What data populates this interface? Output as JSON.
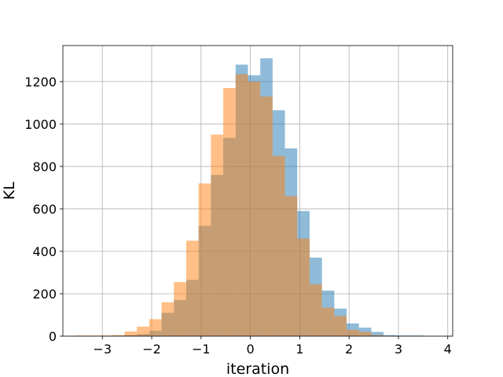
{
  "chart_data": {
    "type": "histogram",
    "xlabel": "iteration",
    "ylabel": "KL",
    "xlim": [
      -3.8,
      4.1
    ],
    "ylim": [
      0,
      1370
    ],
    "xticks": [
      -3,
      -2,
      -1,
      0,
      1,
      2,
      3,
      4
    ],
    "xtick_labels": [
      "−3",
      "−2",
      "−1",
      "0",
      "1",
      "2",
      "3",
      "4"
    ],
    "yticks": [
      0,
      200,
      400,
      600,
      800,
      1000,
      1200
    ],
    "ytick_labels": [
      "0",
      "200",
      "400",
      "600",
      "800",
      "1000",
      "1200"
    ],
    "grid": true,
    "series": [
      {
        "color": "#1f77b4",
        "alpha": 0.5,
        "bins": [
          {
            "x0": -3.05,
            "x1": -2.8,
            "value": 2
          },
          {
            "x0": -2.8,
            "x1": -2.55,
            "value": 3
          },
          {
            "x0": -2.55,
            "x1": -2.3,
            "value": 5
          },
          {
            "x0": -2.3,
            "x1": -2.05,
            "value": 10
          },
          {
            "x0": -2.05,
            "x1": -1.8,
            "value": 25
          },
          {
            "x0": -1.8,
            "x1": -1.55,
            "value": 110
          },
          {
            "x0": -1.55,
            "x1": -1.3,
            "value": 170
          },
          {
            "x0": -1.3,
            "x1": -1.05,
            "value": 265
          },
          {
            "x0": -1.05,
            "x1": -0.8,
            "value": 520
          },
          {
            "x0": -0.8,
            "x1": -0.55,
            "value": 760
          },
          {
            "x0": -0.55,
            "x1": -0.3,
            "value": 935
          },
          {
            "x0": -0.3,
            "x1": -0.05,
            "value": 1280
          },
          {
            "x0": -0.05,
            "x1": 0.2,
            "value": 1230
          },
          {
            "x0": 0.2,
            "x1": 0.45,
            "value": 1310
          },
          {
            "x0": 0.45,
            "x1": 0.7,
            "value": 1065
          },
          {
            "x0": 0.7,
            "x1": 0.95,
            "value": 885
          },
          {
            "x0": 0.95,
            "x1": 1.2,
            "value": 590
          },
          {
            "x0": 1.2,
            "x1": 1.45,
            "value": 370
          },
          {
            "x0": 1.45,
            "x1": 1.7,
            "value": 215
          },
          {
            "x0": 1.7,
            "x1": 1.95,
            "value": 130
          },
          {
            "x0": 1.95,
            "x1": 2.2,
            "value": 60
          },
          {
            "x0": 2.2,
            "x1": 2.45,
            "value": 40
          },
          {
            "x0": 2.45,
            "x1": 2.7,
            "value": 20
          },
          {
            "x0": 2.7,
            "x1": 2.95,
            "value": 5
          },
          {
            "x0": 2.95,
            "x1": 3.2,
            "value": 3
          },
          {
            "x0": 3.2,
            "x1": 3.5,
            "value": 3
          }
        ]
      },
      {
        "color": "#ff7f0e",
        "alpha": 0.5,
        "bins": [
          {
            "x0": -3.55,
            "x1": -3.3,
            "value": 3
          },
          {
            "x0": -3.3,
            "x1": -3.05,
            "value": 3
          },
          {
            "x0": -3.05,
            "x1": -2.8,
            "value": 3
          },
          {
            "x0": -2.8,
            "x1": -2.55,
            "value": 5
          },
          {
            "x0": -2.55,
            "x1": -2.3,
            "value": 22
          },
          {
            "x0": -2.3,
            "x1": -2.05,
            "value": 45
          },
          {
            "x0": -2.05,
            "x1": -1.8,
            "value": 80
          },
          {
            "x0": -1.8,
            "x1": -1.55,
            "value": 160
          },
          {
            "x0": -1.55,
            "x1": -1.3,
            "value": 255
          },
          {
            "x0": -1.3,
            "x1": -1.05,
            "value": 450
          },
          {
            "x0": -1.05,
            "x1": -0.8,
            "value": 720
          },
          {
            "x0": -0.8,
            "x1": -0.55,
            "value": 950
          },
          {
            "x0": -0.55,
            "x1": -0.3,
            "value": 1170
          },
          {
            "x0": -0.3,
            "x1": -0.05,
            "value": 1235
          },
          {
            "x0": -0.05,
            "x1": 0.2,
            "value": 1200
          },
          {
            "x0": 0.2,
            "x1": 0.45,
            "value": 1130
          },
          {
            "x0": 0.45,
            "x1": 0.7,
            "value": 850
          },
          {
            "x0": 0.7,
            "x1": 0.95,
            "value": 660
          },
          {
            "x0": 0.95,
            "x1": 1.2,
            "value": 460
          },
          {
            "x0": 1.2,
            "x1": 1.45,
            "value": 245
          },
          {
            "x0": 1.45,
            "x1": 1.7,
            "value": 135
          },
          {
            "x0": 1.7,
            "x1": 1.95,
            "value": 95
          },
          {
            "x0": 1.95,
            "x1": 2.2,
            "value": 30
          },
          {
            "x0": 2.2,
            "x1": 2.45,
            "value": 20
          },
          {
            "x0": 2.45,
            "x1": 2.7,
            "value": 5
          }
        ]
      }
    ]
  }
}
